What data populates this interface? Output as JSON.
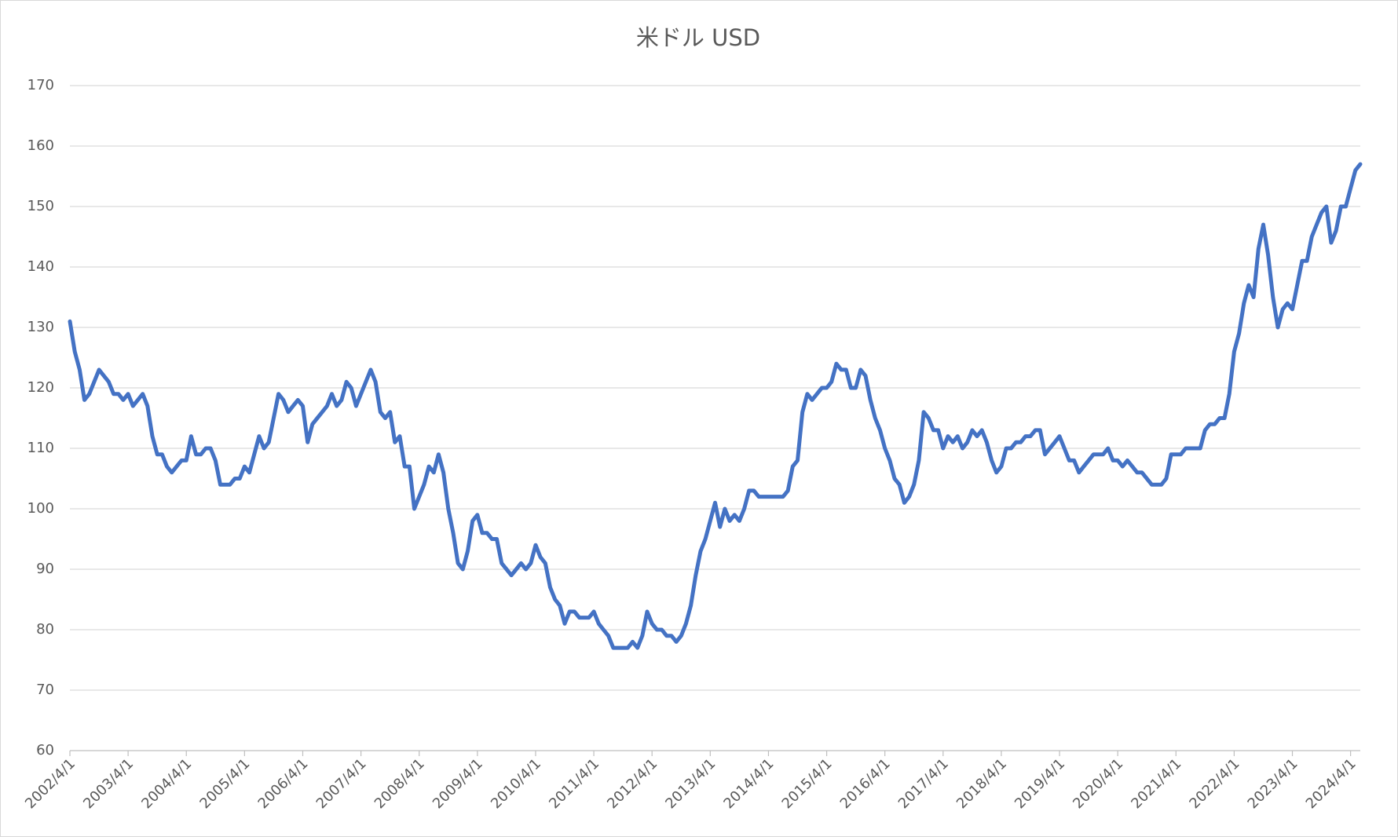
{
  "chart_data": {
    "type": "line",
    "title": "米ドル USD",
    "categories": [
      "2002/4/1",
      null,
      null,
      null,
      null,
      null,
      null,
      null,
      null,
      null,
      null,
      null,
      "2003/4/1",
      null,
      null,
      null,
      null,
      null,
      null,
      null,
      null,
      null,
      null,
      null,
      "2004/4/1",
      null,
      null,
      null,
      null,
      null,
      null,
      null,
      null,
      null,
      null,
      null,
      "2005/4/1",
      null,
      null,
      null,
      null,
      null,
      null,
      null,
      null,
      null,
      null,
      null,
      "2006/4/1",
      null,
      null,
      null,
      null,
      null,
      null,
      null,
      null,
      null,
      null,
      null,
      "2007/4/1",
      null,
      null,
      null,
      null,
      null,
      null,
      null,
      null,
      null,
      null,
      null,
      "2008/4/1",
      null,
      null,
      null,
      null,
      null,
      null,
      null,
      null,
      null,
      null,
      null,
      "2009/4/1",
      null,
      null,
      null,
      null,
      null,
      null,
      null,
      null,
      null,
      null,
      null,
      "2010/4/1",
      null,
      null,
      null,
      null,
      null,
      null,
      null,
      null,
      null,
      null,
      null,
      "2011/4/1",
      null,
      null,
      null,
      null,
      null,
      null,
      null,
      null,
      null,
      null,
      null,
      "2012/4/1",
      null,
      null,
      null,
      null,
      null,
      null,
      null,
      null,
      null,
      null,
      null,
      "2013/4/1",
      null,
      null,
      null,
      null,
      null,
      null,
      null,
      null,
      null,
      null,
      null,
      "2014/4/1",
      null,
      null,
      null,
      null,
      null,
      null,
      null,
      null,
      null,
      null,
      null,
      "2015/4/1",
      null,
      null,
      null,
      null,
      null,
      null,
      null,
      null,
      null,
      null,
      null,
      "2016/4/1",
      null,
      null,
      null,
      null,
      null,
      null,
      null,
      null,
      null,
      null,
      null,
      "2017/4/1",
      null,
      null,
      null,
      null,
      null,
      null,
      null,
      null,
      null,
      null,
      null,
      "2018/4/1",
      null,
      null,
      null,
      null,
      null,
      null,
      null,
      null,
      null,
      null,
      null,
      "2019/4/1",
      null,
      null,
      null,
      null,
      null,
      null,
      null,
      null,
      null,
      null,
      null,
      "2020/4/1",
      null,
      null,
      null,
      null,
      null,
      null,
      null,
      null,
      null,
      null,
      null,
      "2021/4/1",
      null,
      null,
      null,
      null,
      null,
      null,
      null,
      null,
      null,
      null,
      null,
      "2022/4/1",
      null,
      null,
      null,
      null,
      null,
      null,
      null,
      null,
      null,
      null,
      null,
      "2023/4/1",
      null,
      null,
      null,
      null,
      null,
      null,
      null,
      null,
      null,
      null,
      null,
      "2024/4/1",
      null,
      null
    ],
    "values": [
      131,
      126,
      123,
      118,
      119,
      121,
      123,
      122,
      121,
      119,
      119,
      118,
      119,
      117,
      118,
      119,
      117,
      112,
      109,
      109,
      107,
      106,
      107,
      108,
      108,
      112,
      109,
      109,
      110,
      110,
      108,
      104,
      104,
      104,
      105,
      105,
      107,
      106,
      109,
      112,
      110,
      111,
      115,
      119,
      118,
      116,
      117,
      118,
      117,
      111,
      114,
      115,
      116,
      117,
      119,
      117,
      118,
      121,
      120,
      117,
      119,
      121,
      123,
      121,
      116,
      115,
      116,
      111,
      112,
      107,
      107,
      100,
      102,
      104,
      107,
      106,
      109,
      106,
      100,
      96,
      91,
      90,
      93,
      98,
      99,
      96,
      96,
      95,
      95,
      91,
      90,
      89,
      90,
      91,
      90,
      91,
      94,
      92,
      91,
      87,
      85,
      84,
      81,
      83,
      83,
      82,
      82,
      82,
      83,
      81,
      80,
      79,
      77,
      77,
      77,
      77,
      78,
      77,
      79,
      83,
      81,
      80,
      80,
      79,
      79,
      78,
      79,
      81,
      84,
      89,
      93,
      95,
      98,
      101,
      97,
      100,
      98,
      99,
      98,
      100,
      103,
      103,
      102,
      102,
      102,
      102,
      102,
      102,
      103,
      107,
      108,
      116,
      119,
      118,
      119,
      120,
      120,
      121,
      124,
      123,
      123,
      120,
      120,
      123,
      122,
      118,
      115,
      113,
      110,
      108,
      105,
      104,
      101,
      102,
      104,
      108,
      116,
      115,
      113,
      113,
      110,
      112,
      111,
      112,
      110,
      111,
      113,
      112,
      113,
      111,
      108,
      106,
      107,
      110,
      110,
      111,
      111,
      112,
      112,
      113,
      113,
      109,
      110,
      111,
      112,
      110,
      108,
      108,
      106,
      107,
      108,
      109,
      109,
      109,
      110,
      108,
      108,
      107,
      108,
      107,
      106,
      106,
      105,
      104,
      104,
      104,
      105,
      109,
      109,
      109,
      110,
      110,
      110,
      110,
      113,
      114,
      114,
      115,
      115,
      119,
      126,
      129,
      134,
      137,
      135,
      143,
      147,
      142,
      135,
      130,
      133,
      134,
      133,
      137,
      141,
      141,
      145,
      147,
      149,
      150,
      144,
      146,
      150,
      150,
      153,
      156,
      157
    ],
    "color": "#4472c4",
    "ylim": [
      60,
      170
    ],
    "yticks": [
      60,
      70,
      80,
      90,
      100,
      110,
      120,
      130,
      140,
      150,
      160,
      170
    ],
    "grid": true
  }
}
